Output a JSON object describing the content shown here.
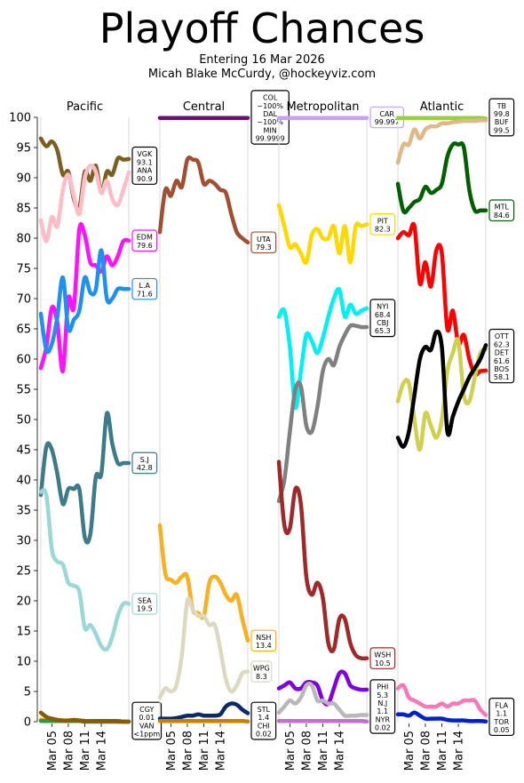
{
  "chart_data": {
    "type": "line",
    "title": "Playoff Chances",
    "subtitle_lines": [
      "Entering 16 Mar 2026",
      "Micah Blake McCurdy, @hockeyviz.com"
    ],
    "ylim": [
      0,
      100
    ],
    "yticks": [
      0,
      5,
      10,
      15,
      20,
      25,
      30,
      35,
      40,
      45,
      50,
      55,
      60,
      65,
      70,
      75,
      80,
      85,
      90,
      95,
      100
    ],
    "x_count": 17,
    "x_tick_labels": [
      {
        "i": 2,
        "label": "Mar 05"
      },
      {
        "i": 5,
        "label": "Mar 08"
      },
      {
        "i": 8,
        "label": "Mar 11"
      },
      {
        "i": 11,
        "label": "Mar 14"
      }
    ],
    "panels": [
      {
        "name": "Pacific",
        "series": [
          {
            "color": "#7a6020",
            "values": [
              96.5,
              95.2,
              96.0,
              94.5,
              90.5,
              91.0,
              86.5,
              85.0,
              91.0,
              89.5,
              92.0,
              87.5,
              91.0,
              90.5,
              93.2,
              93.0,
              93.1
            ]
          },
          {
            "color": "#ffbcc6",
            "values": [
              83.0,
              79.5,
              83.5,
              82.0,
              88.0,
              90.5,
              87.0,
              84.0,
              90.0,
              92.0,
              91.0,
              87.5,
              89.5,
              86.5,
              85.5,
              88.0,
              90.9
            ]
          },
          {
            "color": "#ff10ff",
            "values": [
              58.5,
              62.0,
              68.5,
              66.0,
              58.0,
              70.0,
              68.5,
              81.5,
              80.5,
              76.0,
              75.5,
              74.5,
              77.0,
              75.5,
              77.0,
              79.5,
              79.6
            ]
          },
          {
            "color": "#2090f0",
            "values": [
              67.5,
              61.5,
              62.5,
              67.0,
              73.5,
              65.0,
              66.5,
              68.0,
              73.5,
              71.0,
              71.5,
              78.0,
              70.0,
              70.0,
              71.6,
              71.6,
              71.6
            ]
          },
          {
            "color": "#3d7a8a",
            "values": [
              37.5,
              45.5,
              45.0,
              41.0,
              36.0,
              38.5,
              38.5,
              38.5,
              30.5,
              31.0,
              40.5,
              41.0,
              51.0,
              46.0,
              42.8,
              42.8,
              42.8
            ]
          },
          {
            "color": "#9ad8d8",
            "values": [
              38.0,
              37.5,
              28.5,
              26.5,
              26.0,
              23.0,
              22.5,
              21.5,
              15.5,
              16.0,
              14.5,
              12.5,
              12.0,
              14.0,
              17.5,
              19.5,
              19.5
            ]
          },
          {
            "color": "#e8a000",
            "values": [
              0.3,
              0.2,
              0.2,
              0.2,
              0.2,
              0.2,
              0.2,
              0.2,
              0.1,
              0.1,
              0.1,
              0.1,
              0.1,
              0.1,
              0.0,
              0.0,
              0.01
            ]
          },
          {
            "color": "#2a9a4a",
            "values": [
              0.1,
              0.1,
              0.1,
              0.1,
              0.1,
              0.1,
              0.1,
              0.1,
              0.0,
              0.0,
              0.0,
              0.0,
              0.0,
              0.0,
              0.0,
              0.0,
              0.0
            ]
          },
          {
            "color": "#8a5a00",
            "values": [
              1.5,
              0.8,
              0.5,
              0.3,
              0.2,
              0.2,
              0.3,
              0.2,
              0.1,
              0.1,
              0.1,
              0.1,
              0.1,
              0.1,
              0.1,
              0.0,
              0.0
            ]
          }
        ],
        "labels": [
          {
            "lines": [
              "VGK",
              "93.1",
              "ANA",
              "90.9"
            ],
            "value": 92.0,
            "color": "#000000"
          },
          {
            "lines": [
              "EDM",
              "79.6"
            ],
            "value": 79.6,
            "color": "#ff10ff"
          },
          {
            "lines": [
              "L.A",
              "71.6"
            ],
            "value": 71.6,
            "color": "#2090f0"
          },
          {
            "lines": [
              "S.J",
              "42.8"
            ],
            "value": 42.8,
            "color": "#3d7a8a"
          },
          {
            "lines": [
              "SEA",
              "19.5"
            ],
            "value": 19.5,
            "color": "#9ad8d8"
          },
          {
            "lines": [
              "CGY",
              "0.01",
              "VAN",
              "<1ppm"
            ],
            "value": 0,
            "color": "#000000"
          }
        ]
      },
      {
        "name": "Central",
        "series": [
          {
            "color": "#6a1070",
            "values": [
              99.9,
              99.9,
              99.9,
              99.9,
              99.9,
              99.9,
              99.9,
              99.9,
              99.9,
              99.9,
              99.9,
              99.9,
              99.9,
              99.9,
              99.9,
              99.9,
              99.9
            ]
          },
          {
            "color": "#a05030",
            "values": [
              81.0,
              88.0,
              87.0,
              89.5,
              88.5,
              93.0,
              93.0,
              92.5,
              89.0,
              89.5,
              89.0,
              88.0,
              87.5,
              84.0,
              81.0,
              80.0,
              79.3
            ]
          },
          {
            "color": "#f8b020",
            "values": [
              32.5,
              24.5,
              23.5,
              23.0,
              24.0,
              24.0,
              18.5,
              18.0,
              17.5,
              23.0,
              24.0,
              23.0,
              21.0,
              20.0,
              21.0,
              17.0,
              13.4
            ]
          },
          {
            "color": "#ddd8c0",
            "values": [
              4.0,
              5.5,
              5.0,
              6.0,
              11.0,
              20.0,
              18.5,
              17.5,
              17.5,
              16.0,
              16.0,
              12.0,
              7.0,
              5.0,
              6.0,
              8.0,
              8.3
            ]
          },
          {
            "color": "#0a2a6a",
            "values": [
              0.5,
              0.5,
              0.5,
              0.6,
              0.8,
              1.0,
              1.0,
              1.2,
              1.0,
              1.0,
              1.0,
              1.2,
              2.5,
              3.0,
              2.8,
              2.0,
              1.4
            ]
          },
          {
            "color": "#c88000",
            "values": [
              0.1,
              0.1,
              0.1,
              0.1,
              0.1,
              0.1,
              0.1,
              0.1,
              0.1,
              0.1,
              0.1,
              0.1,
              0.1,
              0.1,
              0.1,
              0.1,
              0.02
            ]
          }
        ],
        "labels": [
          {
            "lines": [
              "COL",
              "~100%",
              "DAL",
              "~100%",
              "MIN",
              "99.9999"
            ],
            "value": 100,
            "color": "#000000"
          },
          {
            "lines": [
              "UTA",
              "79.3"
            ],
            "value": 79.3,
            "color": "#a05030"
          },
          {
            "lines": [
              "NSH",
              "13.4"
            ],
            "value": 13.4,
            "color": "#f8b020"
          },
          {
            "lines": [
              "WPG",
              "8.3"
            ],
            "value": 8.3,
            "color": "#ddd8c0"
          },
          {
            "lines": [
              "STL",
              "1.4",
              "CHI",
              "0.02"
            ],
            "value": 0,
            "color": "#000000"
          }
        ]
      },
      {
        "name": "Metropolitan",
        "series": [
          {
            "color": "#c8a0f0",
            "values": [
              99.9,
              99.9,
              99.9,
              99.9,
              99.9,
              99.9,
              99.9,
              99.9,
              99.9,
              99.9,
              99.9,
              99.9,
              99.9,
              99.9,
              99.9,
              99.9,
              99.9
            ]
          },
          {
            "color": "#ffd800",
            "values": [
              85.5,
              82.0,
              78.5,
              79.0,
              77.5,
              76.0,
              80.5,
              81.5,
              80.0,
              80.0,
              82.0,
              77.5,
              82.0,
              76.0,
              82.0,
              82.0,
              82.3
            ]
          },
          {
            "color": "#00f0f8",
            "values": [
              67.0,
              68.0,
              62.0,
              52.0,
              58.0,
              64.0,
              63.0,
              61.0,
              63.5,
              67.0,
              70.0,
              71.5,
              67.0,
              69.0,
              67.5,
              68.0,
              68.4
            ]
          },
          {
            "color": "#808080",
            "values": [
              36.5,
              40.0,
              48.0,
              55.0,
              55.5,
              49.0,
              48.0,
              52.0,
              58.0,
              60.0,
              59.0,
              62.0,
              64.0,
              65.5,
              65.5,
              65.3,
              65.3
            ]
          },
          {
            "color": "#a02828",
            "values": [
              43.0,
              32.5,
              32.0,
              38.5,
              36.0,
              24.0,
              21.0,
              23.0,
              20.5,
              13.0,
              12.0,
              17.0,
              17.0,
              13.0,
              11.0,
              10.5,
              10.5
            ]
          },
          {
            "color": "#8000e0",
            "values": [
              5.5,
              6.0,
              6.5,
              5.5,
              5.5,
              6.5,
              6.5,
              6.0,
              3.5,
              3.0,
              5.5,
              8.0,
              8.0,
              6.0,
              5.5,
              5.3,
              5.3
            ]
          },
          {
            "color": "#b8b8b8",
            "values": [
              1.5,
              2.5,
              3.5,
              3.0,
              4.0,
              6.0,
              6.0,
              3.5,
              3.5,
              3.0,
              3.0,
              2.0,
              1.0,
              1.0,
              1.0,
              1.1,
              1.1
            ]
          },
          {
            "color": "#c070d0",
            "values": [
              0.1,
              0.1,
              0.1,
              0.1,
              0.1,
              0.1,
              0.1,
              0.1,
              0.1,
              0.1,
              0.1,
              0.1,
              0.1,
              0.1,
              0.1,
              0.1,
              0.02
            ]
          }
        ],
        "labels": [
          {
            "lines": [
              "CAR",
              "99.997"
            ],
            "value": 100,
            "color": "#c8a0f0"
          },
          {
            "lines": [
              "PIT",
              "82.3"
            ],
            "value": 82.3,
            "color": "#ffd800"
          },
          {
            "lines": [
              "NYI",
              "68.4",
              "CBJ",
              "65.3"
            ],
            "value": 66.8,
            "color": "#000000"
          },
          {
            "lines": [
              "WSH",
              "10.5"
            ],
            "value": 10.5,
            "color": "#a02828"
          },
          {
            "lines": [
              "PHI",
              "5.3",
              "N.J",
              "1.1",
              "NYR",
              "0.02"
            ],
            "value": 2.5,
            "color": "#000000"
          }
        ]
      },
      {
        "name": "Atlantic",
        "series": [
          {
            "color": "#98d040",
            "values": [
              99.9,
              99.9,
              99.9,
              99.9,
              99.9,
              99.9,
              99.9,
              99.9,
              99.9,
              99.9,
              99.9,
              99.9,
              99.9,
              99.9,
              99.9,
              99.9,
              99.8
            ]
          },
          {
            "color": "#e0b888",
            "values": [
              92.5,
              95.5,
              95.5,
              98.0,
              96.5,
              98.0,
              98.5,
              98.5,
              99.0,
              99.0,
              99.2,
              99.3,
              99.4,
              99.4,
              99.4,
              99.5,
              99.5
            ]
          },
          {
            "color": "#006000",
            "values": [
              89.0,
              84.5,
              85.0,
              86.0,
              86.5,
              88.5,
              87.5,
              88.0,
              89.0,
              93.5,
              95.5,
              95.5,
              95.0,
              88.0,
              84.6,
              84.6,
              84.6
            ]
          },
          {
            "color": "#ff0000",
            "values": [
              80.0,
              81.0,
              80.5,
              82.0,
              72.5,
              76.0,
              72.0,
              78.0,
              77.5,
              65.0,
              68.0,
              62.5,
              64.0,
              60.0,
              57.5,
              58.0,
              58.1
            ]
          },
          {
            "color": "#d0d050",
            "values": [
              53.0,
              56.0,
              56.0,
              50.0,
              45.0,
              51.0,
              49.0,
              47.0,
              50.0,
              58.0,
              61.0,
              63.0,
              54.0,
              53.0,
              57.0,
              61.0,
              61.6
            ]
          },
          {
            "color": "#000000",
            "values": [
              47.0,
              45.5,
              48.0,
              54.0,
              60.0,
              62.0,
              61.5,
              64.5,
              62.0,
              48.0,
              50.5,
              53.0,
              55.0,
              57.0,
              58.5,
              60.0,
              62.3
            ]
          },
          {
            "color": "#f878b8",
            "values": [
              5.5,
              6.0,
              4.0,
              3.5,
              3.0,
              2.5,
              2.5,
              2.5,
              3.0,
              2.5,
              3.0,
              3.0,
              3.5,
              3.5,
              3.5,
              2.0,
              1.1
            ]
          },
          {
            "color": "#0020d0",
            "values": [
              1.2,
              1.2,
              1.0,
              1.5,
              1.0,
              0.5,
              0.5,
              0.5,
              0.5,
              0.3,
              0.2,
              0.2,
              0.2,
              0.1,
              0.1,
              0.1,
              0.05
            ]
          }
        ],
        "labels": [
          {
            "lines": [
              "TB",
              "99.8",
              "BUF",
              "99.5"
            ],
            "value": 100,
            "color": "#000000"
          },
          {
            "lines": [
              "MTL",
              "84.6"
            ],
            "value": 84.6,
            "color": "#006000"
          },
          {
            "lines": [
              "OTT",
              "62.3",
              "DET",
              "61.6",
              "BOS",
              "58.1"
            ],
            "value": 60.5,
            "color": "#000000"
          },
          {
            "lines": [
              "FLA",
              "1.1",
              "TOR",
              "0.05"
            ],
            "value": 0.8,
            "color": "#000000"
          }
        ]
      }
    ]
  }
}
